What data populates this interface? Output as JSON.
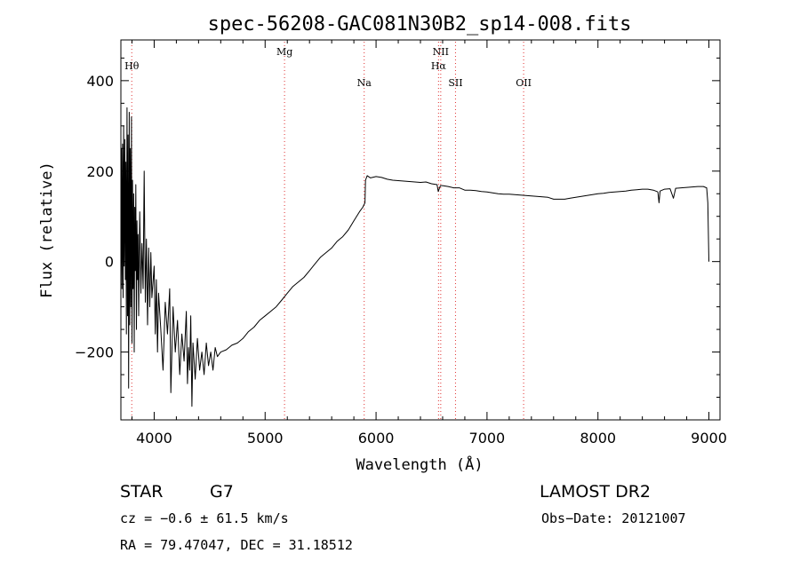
{
  "chart_data": {
    "type": "line",
    "title": "spec-56208-GAC081N30B2_sp14-008.fits",
    "xlabel": "Wavelength (Å)",
    "ylabel": "Flux (relative)",
    "xlim": [
      3700,
      9100
    ],
    "ylim": [
      -350,
      490
    ],
    "x_ticks": [
      4000,
      5000,
      6000,
      7000,
      8000,
      9000
    ],
    "y_ticks": [
      -200,
      0,
      200,
      400
    ],
    "grid": false,
    "series": [
      {
        "points": [
          [
            3700,
            -40
          ],
          [
            3705,
            250
          ],
          [
            3710,
            -60
          ],
          [
            3715,
            260
          ],
          [
            3720,
            -80
          ],
          [
            3725,
            300
          ],
          [
            3730,
            -10
          ],
          [
            3735,
            270
          ],
          [
            3740,
            -40
          ],
          [
            3745,
            220
          ],
          [
            3750,
            -160
          ],
          [
            3755,
            340
          ],
          [
            3760,
            -120
          ],
          [
            3765,
            280
          ],
          [
            3770,
            -280
          ],
          [
            3775,
            330
          ],
          [
            3780,
            -140
          ],
          [
            3785,
            250
          ],
          [
            3790,
            -100
          ],
          [
            3795,
            320
          ],
          [
            3800,
            -180
          ],
          [
            3805,
            180
          ],
          [
            3810,
            -60
          ],
          [
            3815,
            150
          ],
          [
            3820,
            -200
          ],
          [
            3825,
            120
          ],
          [
            3830,
            -20
          ],
          [
            3835,
            170
          ],
          [
            3840,
            -150
          ],
          [
            3845,
            90
          ],
          [
            3850,
            -40
          ],
          [
            3855,
            60
          ],
          [
            3860,
            -120
          ],
          [
            3870,
            110
          ],
          [
            3880,
            -70
          ],
          [
            3890,
            40
          ],
          [
            3900,
            -60
          ],
          [
            3910,
            200
          ],
          [
            3920,
            -90
          ],
          [
            3930,
            50
          ],
          [
            3940,
            -140
          ],
          [
            3950,
            30
          ],
          [
            3960,
            -100
          ],
          [
            3970,
            20
          ],
          [
            3980,
            -80
          ],
          [
            4000,
            -10
          ],
          [
            4010,
            -160
          ],
          [
            4020,
            -40
          ],
          [
            4030,
            -200
          ],
          [
            4040,
            -70
          ],
          [
            4060,
            -150
          ],
          [
            4080,
            -240
          ],
          [
            4100,
            -90
          ],
          [
            4120,
            -160
          ],
          [
            4140,
            -60
          ],
          [
            4150,
            -290
          ],
          [
            4170,
            -100
          ],
          [
            4190,
            -200
          ],
          [
            4210,
            -130
          ],
          [
            4230,
            -250
          ],
          [
            4250,
            -160
          ],
          [
            4270,
            -220
          ],
          [
            4290,
            -110
          ],
          [
            4300,
            -270
          ],
          [
            4310,
            -190
          ],
          [
            4320,
            -240
          ],
          [
            4330,
            -120
          ],
          [
            4340,
            -320
          ],
          [
            4350,
            -180
          ],
          [
            4370,
            -260
          ],
          [
            4390,
            -170
          ],
          [
            4410,
            -240
          ],
          [
            4430,
            -200
          ],
          [
            4450,
            -250
          ],
          [
            4470,
            -180
          ],
          [
            4490,
            -230
          ],
          [
            4510,
            -200
          ],
          [
            4530,
            -240
          ],
          [
            4550,
            -190
          ],
          [
            4570,
            -210
          ],
          [
            4600,
            -200
          ],
          [
            4650,
            -195
          ],
          [
            4700,
            -185
          ],
          [
            4750,
            -180
          ],
          [
            4800,
            -170
          ],
          [
            4850,
            -155
          ],
          [
            4900,
            -145
          ],
          [
            4950,
            -130
          ],
          [
            5000,
            -120
          ],
          [
            5050,
            -110
          ],
          [
            5100,
            -100
          ],
          [
            5150,
            -85
          ],
          [
            5200,
            -70
          ],
          [
            5250,
            -55
          ],
          [
            5300,
            -45
          ],
          [
            5350,
            -35
          ],
          [
            5400,
            -20
          ],
          [
            5450,
            -5
          ],
          [
            5500,
            10
          ],
          [
            5550,
            20
          ],
          [
            5600,
            30
          ],
          [
            5650,
            45
          ],
          [
            5700,
            55
          ],
          [
            5750,
            70
          ],
          [
            5800,
            90
          ],
          [
            5850,
            110
          ],
          [
            5880,
            120
          ],
          [
            5900,
            130
          ],
          [
            5905,
            180
          ],
          [
            5920,
            190
          ],
          [
            5950,
            185
          ],
          [
            6000,
            188
          ],
          [
            6050,
            186
          ],
          [
            6100,
            182
          ],
          [
            6150,
            180
          ],
          [
            6200,
            179
          ],
          [
            6250,
            178
          ],
          [
            6300,
            177
          ],
          [
            6350,
            176
          ],
          [
            6400,
            175
          ],
          [
            6450,
            176
          ],
          [
            6500,
            172
          ],
          [
            6550,
            170
          ],
          [
            6560,
            155
          ],
          [
            6580,
            168
          ],
          [
            6600,
            168
          ],
          [
            6650,
            166
          ],
          [
            6700,
            163
          ],
          [
            6750,
            163
          ],
          [
            6800,
            158
          ],
          [
            6850,
            158
          ],
          [
            6900,
            157
          ],
          [
            6950,
            155
          ],
          [
            7000,
            154
          ],
          [
            7050,
            152
          ],
          [
            7100,
            150
          ],
          [
            7150,
            149
          ],
          [
            7200,
            149
          ],
          [
            7250,
            148
          ],
          [
            7300,
            147
          ],
          [
            7350,
            146
          ],
          [
            7400,
            145
          ],
          [
            7450,
            144
          ],
          [
            7500,
            143
          ],
          [
            7550,
            142
          ],
          [
            7600,
            138
          ],
          [
            7650,
            138
          ],
          [
            7700,
            138
          ],
          [
            7750,
            140
          ],
          [
            7800,
            142
          ],
          [
            7850,
            144
          ],
          [
            7900,
            146
          ],
          [
            7950,
            148
          ],
          [
            8000,
            150
          ],
          [
            8050,
            151
          ],
          [
            8100,
            153
          ],
          [
            8150,
            154
          ],
          [
            8200,
            155
          ],
          [
            8250,
            156
          ],
          [
            8300,
            158
          ],
          [
            8350,
            159
          ],
          [
            8400,
            160
          ],
          [
            8450,
            160
          ],
          [
            8500,
            158
          ],
          [
            8540,
            154
          ],
          [
            8550,
            130
          ],
          [
            8560,
            156
          ],
          [
            8600,
            160
          ],
          [
            8650,
            161
          ],
          [
            8680,
            140
          ],
          [
            8700,
            162
          ],
          [
            8750,
            163
          ],
          [
            8800,
            164
          ],
          [
            8850,
            165
          ],
          [
            8900,
            166
          ],
          [
            8950,
            166
          ],
          [
            8980,
            163
          ],
          [
            8990,
            130
          ],
          [
            9000,
            0
          ]
        ]
      }
    ],
    "lines": [
      {
        "label": "Hθ",
        "x": 3798,
        "row": 1
      },
      {
        "label": "Mg",
        "x": 5175,
        "row": 0
      },
      {
        "label": "Na",
        "x": 5893,
        "row": 2
      },
      {
        "label": "NII",
        "x": 6583,
        "row": 0
      },
      {
        "label": "Hα",
        "x": 6563,
        "row": 1
      },
      {
        "label": "SII",
        "x": 6716,
        "row": 2
      },
      {
        "label": "OII",
        "x": 7330,
        "row": 2
      }
    ]
  },
  "info": {
    "object_class": "STAR",
    "subclass": "G7",
    "survey": "LAMOST DR2",
    "cz": "cz = −0.6 ± 61.5 km/s",
    "obs_date": "Obs−Date: 20121007",
    "coords": "RA =  79.47047, DEC =  31.18512"
  }
}
